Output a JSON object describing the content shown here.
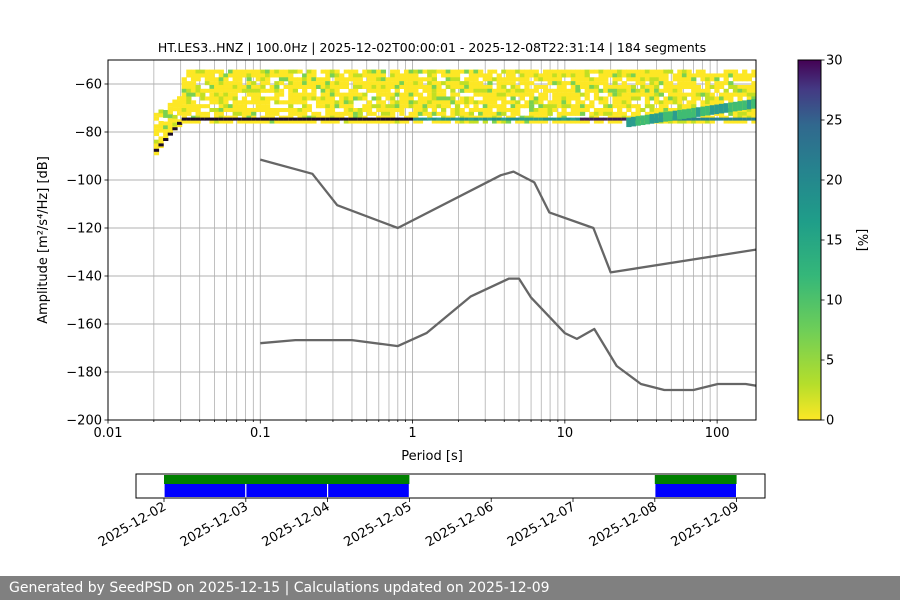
{
  "chart_data": [
    {
      "type": "heatmap",
      "title": "HT.LES3..HNZ | 100.0Hz | 2025-12-02T00:00:01 - 2025-12-08T22:31:14 | 184 segments",
      "xlabel": "Period [s]",
      "ylabel": "Amplitude [m²/s⁴/Hz] [dB]",
      "xscale": "log",
      "xlim": [
        0.01,
        180
      ],
      "ylim": [
        -200,
        -50
      ],
      "xticks": [
        0.01,
        0.1,
        1,
        10,
        100
      ],
      "xtick_labels": [
        "0.01",
        "0.1",
        "1",
        "10",
        "100"
      ],
      "yticks": [
        -60,
        -80,
        -100,
        -120,
        -140,
        -160,
        -180,
        -200
      ],
      "ytick_labels": [
        "−60",
        "−80",
        "−100",
        "−120",
        "−140",
        "−160",
        "−180",
        "−200"
      ],
      "grid": true,
      "colorbar": {
        "label": "[%]",
        "range": [
          0,
          30
        ],
        "ticks": [
          0,
          5,
          10,
          15,
          20,
          25,
          30
        ],
        "tick_labels": [
          "0",
          "5",
          "10",
          "15",
          "20",
          "25",
          "30"
        ],
        "colormap": "viridis_r"
      },
      "density_description_values": {
        "period_range": [
          0.02,
          180
        ],
        "main_band_db": [
          -75,
          -55
        ],
        "peak_line_db": -74,
        "long_period_rise_db": [
          -74,
          -68
        ]
      },
      "series": [
        {
          "name": "",
          "style": "noise-model-upper",
          "color": "#666666",
          "x": [
            0.1,
            0.22,
            0.32,
            0.8,
            3.8,
            4.6,
            6.3,
            7.9,
            15.4,
            20.0,
            180
          ],
          "y": [
            -91.5,
            -97.4,
            -110.5,
            -120.0,
            -98.0,
            -96.5,
            -101.0,
            -113.5,
            -120.0,
            -138.5,
            -129.0
          ]
        },
        {
          "name": "",
          "style": "noise-model-lower",
          "color": "#666666",
          "x": [
            0.1,
            0.17,
            0.4,
            0.8,
            1.24,
            2.4,
            4.3,
            5.0,
            6.0,
            10.0,
            12.0,
            15.6,
            21.9,
            31.6,
            45.0,
            70.0,
            101.0,
            154.0,
            180.0
          ],
          "y": [
            -168.0,
            -166.7,
            -166.7,
            -169.2,
            -163.7,
            -148.6,
            -141.1,
            -141.1,
            -149.0,
            -163.8,
            -166.2,
            -162.1,
            -177.5,
            -185.0,
            -187.5,
            -187.5,
            -185.0,
            -185.0,
            -185.7
          ]
        }
      ]
    },
    {
      "type": "timeline",
      "xtick_labels": [
        "2025-12-02",
        "2025-12-03",
        "2025-12-04",
        "2025-12-05",
        "2025-12-06",
        "2025-12-07",
        "2025-12-08",
        "2025-12-09"
      ],
      "data_availability": [
        {
          "start": "2025-12-02",
          "end": "2025-12-03",
          "color": "#0000ff"
        },
        {
          "start": "2025-12-03",
          "end": "2025-12-04",
          "color": "#0000ff"
        },
        {
          "start": "2025-12-04",
          "end": "2025-12-05",
          "color": "#0000ff"
        },
        {
          "start": "2025-12-08",
          "end": "2025-12-09",
          "color": "#0000ff"
        }
      ],
      "psd_coverage": [
        {
          "start": "2025-12-02",
          "end": "2025-12-05",
          "color": "#008000"
        },
        {
          "start": "2025-12-08",
          "end": "2025-12-09",
          "color": "#008000"
        }
      ]
    }
  ],
  "footer": {
    "text": "Generated by SeedPSD on 2025-12-15 | Calculations updated on 2025-12-09"
  },
  "colors": {
    "noise_model": "#666666",
    "grid": "#b0b0b0",
    "availability": "#0000ff",
    "coverage": "#008000",
    "footer_bg": "#808080"
  }
}
